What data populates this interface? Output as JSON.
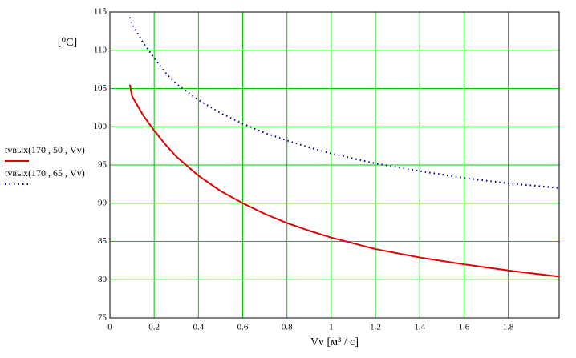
{
  "chart_data": {
    "type": "line",
    "ylabel": "[⁰C]",
    "xlabel": "Vv   [м³ / c]",
    "x": [
      0.09,
      0.1,
      0.15,
      0.2,
      0.25,
      0.3,
      0.4,
      0.5,
      0.6,
      0.7,
      0.8,
      0.9,
      1.0,
      1.2,
      1.4,
      1.6,
      1.8,
      2.03
    ],
    "series": [
      {
        "name": "tvвых(170 , 50 , Vv)",
        "color": "#e00000",
        "style": "solid",
        "values": [
          105.5,
          104,
          101.5,
          99.5,
          97.7,
          96.1,
          93.6,
          91.6,
          90,
          88.6,
          87.4,
          86.4,
          85.5,
          84.0,
          82.9,
          82.0,
          81.2,
          80.4
        ]
      },
      {
        "name": "tvвых(170 , 65 , Vv)",
        "color": "#0000a0",
        "style": "dotted",
        "values": [
          114.3,
          113.4,
          111,
          109,
          107.1,
          105.6,
          103.5,
          101.8,
          100.4,
          99.2,
          98.2,
          97.3,
          96.5,
          95.2,
          94.2,
          93.3,
          92.6,
          92.0
        ]
      }
    ],
    "xlim": [
      0,
      2.03
    ],
    "ylim": [
      75,
      115
    ],
    "xticks": [
      0,
      0.2,
      0.4,
      0.6,
      0.8,
      1,
      1.2,
      1.4,
      1.6,
      1.8
    ],
    "yticks": [
      75,
      80,
      85,
      90,
      95,
      100,
      105,
      110,
      115
    ],
    "grid": true,
    "grid_color": "#00c800",
    "legend": "left"
  }
}
